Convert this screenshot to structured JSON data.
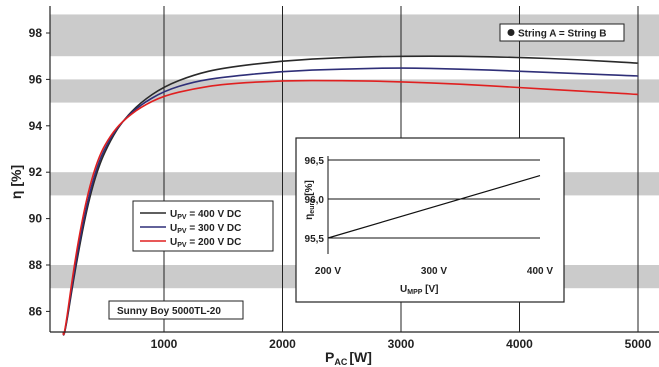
{
  "chart_data": [
    {
      "type": "line",
      "xlabel": "P",
      "xlabel_sub": "AC",
      "xlabel_unit": "[W]",
      "ylabel": "η [%]",
      "xlim": [
        150,
        5000
      ],
      "ylim": [
        84.5,
        98.8
      ],
      "xticks": [
        1000,
        2000,
        3000,
        4000,
        5000
      ],
      "yticks": [
        86,
        88,
        90,
        92,
        94,
        96,
        98
      ],
      "bands": [
        [
          84.5,
          85
        ],
        [
          87,
          88
        ],
        [
          91,
          92
        ],
        [
          95,
          96
        ],
        [
          97,
          98.8
        ]
      ],
      "grid": true,
      "legend": {
        "position": "center-left",
        "entries": [
          {
            "base": "U",
            "sub": "PV",
            "rest": " = 400 V DC",
            "color": "#2a2a2a"
          },
          {
            "base": "U",
            "sub": "PV",
            "rest": " = 300 V DC",
            "color": "#2f2f78"
          },
          {
            "base": "U",
            "sub": "PV",
            "rest": " = 200 V DC",
            "color": "#e02020"
          }
        ]
      },
      "series": [
        {
          "color": "#2a2a2a",
          "x": [
            150,
            250,
            350,
            450,
            550,
            650,
            800,
            1000,
            1250,
            1500,
            2000,
            2500,
            3000,
            3500,
            4000,
            4500,
            5000
          ],
          "y": [
            84.6,
            87.8,
            90.5,
            92.3,
            93.4,
            94.2,
            95.0,
            95.7,
            96.2,
            96.5,
            96.8,
            96.95,
            97.0,
            97.0,
            96.95,
            96.85,
            96.7
          ]
        },
        {
          "color": "#2f2f78",
          "x": [
            150,
            250,
            350,
            450,
            550,
            650,
            800,
            1000,
            1250,
            1500,
            2000,
            2500,
            3000,
            3500,
            4000,
            4500,
            5000
          ],
          "y": [
            84.6,
            88.0,
            90.7,
            92.5,
            93.5,
            94.2,
            94.9,
            95.5,
            95.9,
            96.1,
            96.35,
            96.45,
            96.5,
            96.45,
            96.35,
            96.25,
            96.15
          ]
        },
        {
          "color": "#e02020",
          "x": [
            150,
            250,
            350,
            450,
            550,
            650,
            800,
            1000,
            1250,
            1500,
            2000,
            2500,
            3000,
            3500,
            4000,
            4500,
            5000
          ],
          "y": [
            84.6,
            88.3,
            91.0,
            92.7,
            93.6,
            94.2,
            94.8,
            95.3,
            95.6,
            95.8,
            95.95,
            95.95,
            95.9,
            95.8,
            95.65,
            95.5,
            95.35
          ]
        }
      ],
      "annotations": [
        {
          "text": "String A = String B",
          "position": "top-right",
          "marker": "filled-circle"
        },
        {
          "text": "Sunny Boy 5000TL-20",
          "position": "bottom-left"
        }
      ]
    },
    {
      "type": "line",
      "role": "inset",
      "xlabel": "U",
      "xlabel_sub": "MPP",
      "xlabel_unit": " [V]",
      "ylabel": "η",
      "ylabel_sub": "euro",
      "ylabel_unit": " [%]",
      "xlim": [
        200,
        400
      ],
      "ylim": [
        95.5,
        96.5
      ],
      "xticks": [
        200,
        300,
        400
      ],
      "xtick_labels": [
        "200 V",
        "300 V",
        "400 V"
      ],
      "yticks": [
        95.5,
        96.0,
        96.5
      ],
      "ytick_labels": [
        "95,5",
        "96,0",
        "96,5"
      ],
      "grid": true,
      "series": [
        {
          "color": "#111111",
          "x": [
            200,
            400
          ],
          "y": [
            95.5,
            96.3
          ]
        }
      ]
    }
  ]
}
